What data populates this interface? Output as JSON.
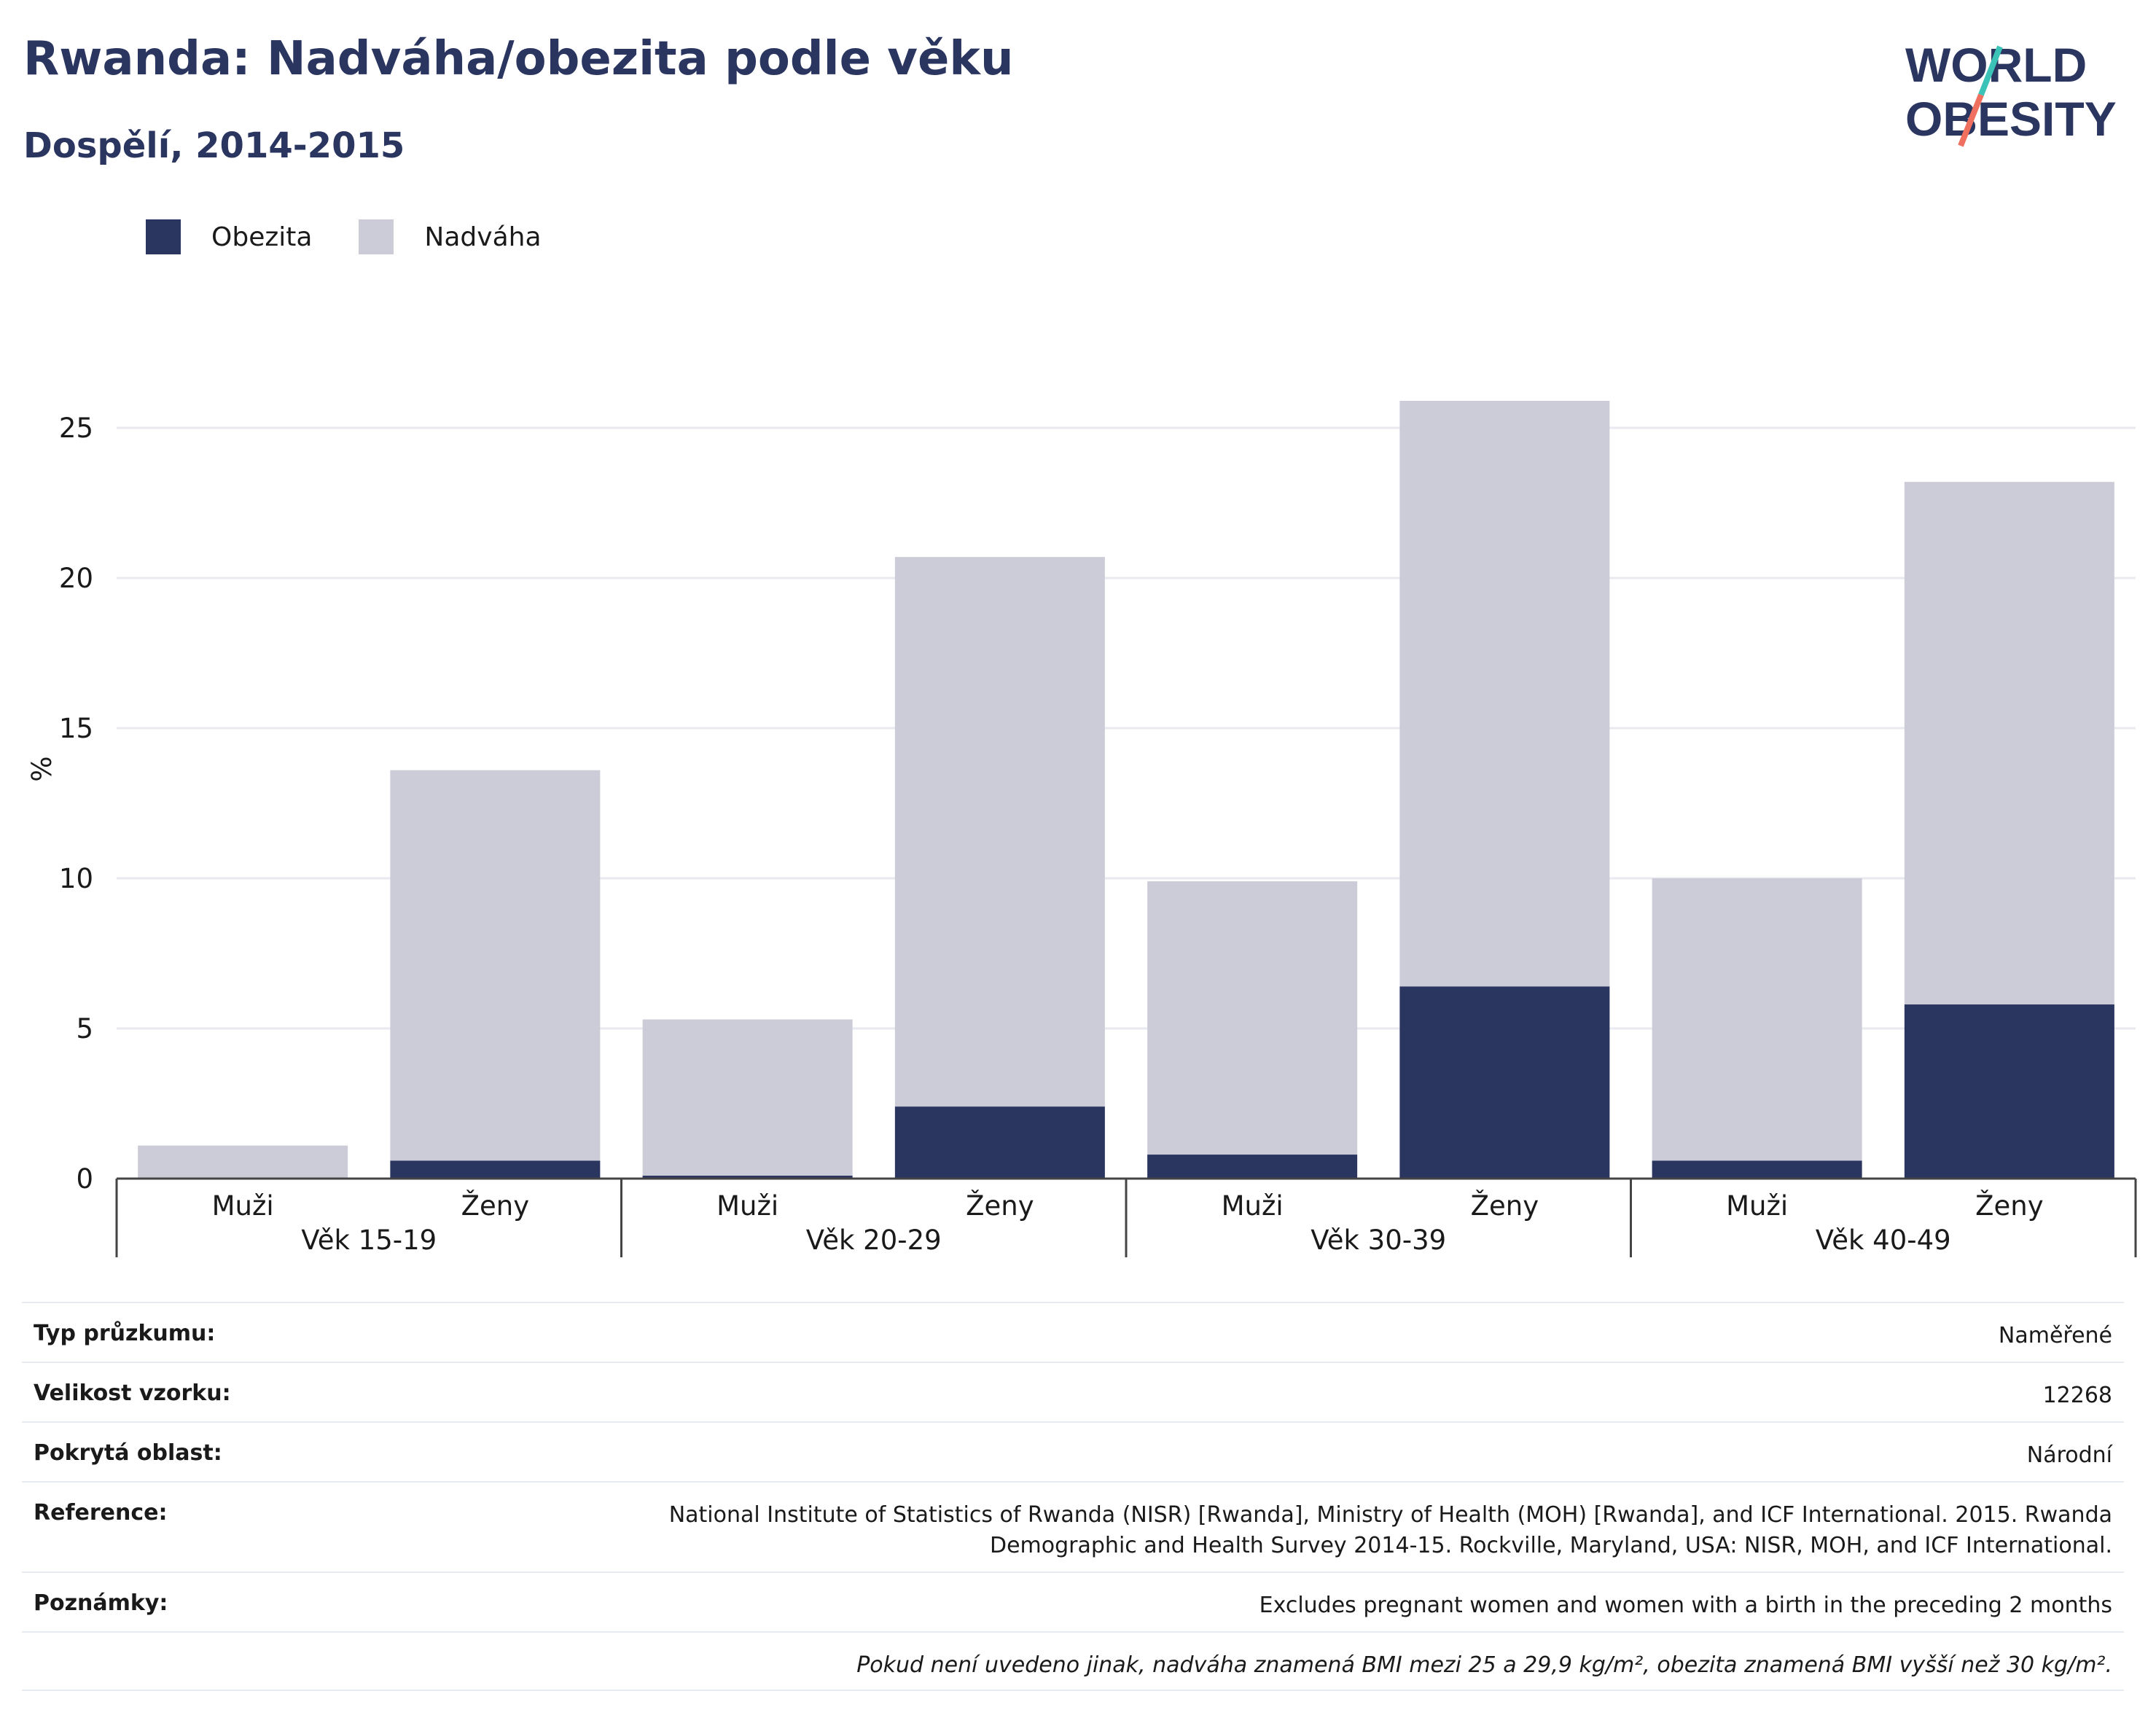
{
  "header": {
    "title": "Rwanda: Nadváha/obezita podle věku",
    "subtitle": "Dospělí, 2014-2015"
  },
  "logo": {
    "line1": "WORLD",
    "line2": "OBESITY",
    "colors": [
      "#2a3560",
      "#3cc3b8",
      "#f07060"
    ]
  },
  "legend": [
    {
      "label": "Obezita",
      "color": "#2a3560"
    },
    {
      "label": "Nadváha",
      "color": "#cbccd8"
    }
  ],
  "chart_data": {
    "type": "bar",
    "stacked": true,
    "ylabel": "%",
    "ylim": [
      0,
      26.5
    ],
    "yticks": [
      0,
      5,
      10,
      15,
      20,
      25
    ],
    "grid": true,
    "legend_position": "top-left",
    "groups": [
      "Věk 15-19",
      "Věk 20-29",
      "Věk 30-39",
      "Věk 40-49"
    ],
    "categories": [
      "Muži",
      "Ženy",
      "Muži",
      "Ženy",
      "Muži",
      "Ženy",
      "Muži",
      "Ženy"
    ],
    "series": [
      {
        "name": "Obezita",
        "color": "#2a3560",
        "values": [
          0.0,
          0.6,
          0.1,
          2.4,
          0.8,
          6.4,
          0.6,
          5.8
        ]
      },
      {
        "name": "Nadváha",
        "color": "#cbccd8",
        "values": [
          1.1,
          13.0,
          5.2,
          18.3,
          9.1,
          19.5,
          9.4,
          17.4
        ]
      }
    ],
    "totals": [
      1.1,
      13.6,
      5.3,
      20.7,
      9.9,
      25.9,
      10.0,
      23.2
    ]
  },
  "info": {
    "rows": [
      {
        "key": "Typ průzkumu:",
        "value": "Naměřené"
      },
      {
        "key": "Velikost vzorku:",
        "value": "12268"
      },
      {
        "key": "Pokrytá oblast:",
        "value": "Národní"
      },
      {
        "key": "Reference:",
        "value": "National Institute of Statistics of Rwanda (NISR) [Rwanda], Ministry of Health (MOH) [Rwanda], and ICF International. 2015. Rwanda Demographic and Health Survey 2014-15. Rockville, Maryland, USA: NISR, MOH, and ICF International."
      },
      {
        "key": "Poznámky:",
        "value": "Excludes pregnant women and women with a birth in the preceding 2 months"
      }
    ],
    "footnote": "Pokud není uvedeno jinak, nadváha znamená BMI mezi 25 a 29,9 kg/m², obezita znamená BMI vyšší než 30 kg/m²."
  }
}
